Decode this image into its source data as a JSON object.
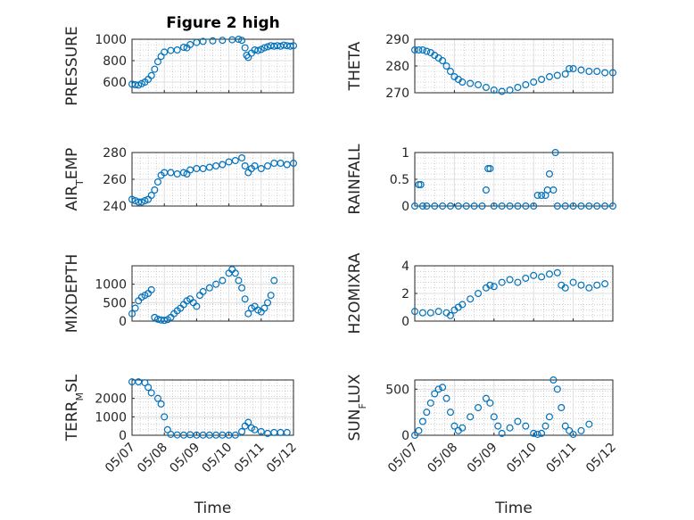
{
  "figure_title": "Figure 2 high",
  "colors": {
    "marker": "#0072BD",
    "axes": "#262626",
    "grid": "#DFDFDF",
    "minor_grid": "#B0B0B0"
  },
  "chart_data": [
    {
      "type": "scatter",
      "ylabel": "PRESSURE",
      "ylim": [
        500,
        1000
      ],
      "yticks": [
        600,
        800,
        1000
      ],
      "xlim": [
        0,
        5
      ],
      "xticks": [
        "05/07",
        "05/08",
        "05/09",
        "05/10",
        "05/11",
        "05/12"
      ],
      "xlabel": "",
      "grid": true,
      "points": [
        [
          0,
          580
        ],
        [
          0.1,
          575
        ],
        [
          0.2,
          572
        ],
        [
          0.3,
          585
        ],
        [
          0.4,
          600
        ],
        [
          0.5,
          625
        ],
        [
          0.6,
          660
        ],
        [
          0.7,
          720
        ],
        [
          0.8,
          790
        ],
        [
          0.9,
          840
        ],
        [
          1.0,
          880
        ],
        [
          1.2,
          895
        ],
        [
          1.4,
          900
        ],
        [
          1.6,
          925
        ],
        [
          1.7,
          920
        ],
        [
          1.8,
          950
        ],
        [
          2.0,
          970
        ],
        [
          2.2,
          980
        ],
        [
          2.5,
          985
        ],
        [
          2.8,
          990
        ],
        [
          3.1,
          995
        ],
        [
          3.3,
          1000
        ],
        [
          3.4,
          990
        ],
        [
          3.5,
          920
        ],
        [
          3.55,
          850
        ],
        [
          3.6,
          830
        ],
        [
          3.7,
          870
        ],
        [
          3.8,
          900
        ],
        [
          3.9,
          895
        ],
        [
          4.0,
          905
        ],
        [
          4.1,
          920
        ],
        [
          4.2,
          930
        ],
        [
          4.3,
          940
        ],
        [
          4.4,
          935
        ],
        [
          4.5,
          940
        ],
        [
          4.6,
          935
        ],
        [
          4.7,
          945
        ],
        [
          4.8,
          940
        ],
        [
          4.9,
          935
        ],
        [
          5.0,
          940
        ]
      ]
    },
    {
      "type": "scatter",
      "ylabel": "THETA",
      "ylim": [
        270,
        290
      ],
      "yticks": [
        270,
        280,
        290
      ],
      "xlim": [
        0,
        5
      ],
      "xticks": [
        "05/07",
        "05/08",
        "05/09",
        "05/10",
        "05/11",
        "05/12"
      ],
      "xlabel": "",
      "grid": true,
      "points": [
        [
          0,
          286
        ],
        [
          0.1,
          286
        ],
        [
          0.2,
          286
        ],
        [
          0.3,
          285.5
        ],
        [
          0.4,
          285
        ],
        [
          0.5,
          284
        ],
        [
          0.6,
          283
        ],
        [
          0.7,
          282
        ],
        [
          0.8,
          280
        ],
        [
          0.9,
          278
        ],
        [
          1.0,
          276
        ],
        [
          1.1,
          275
        ],
        [
          1.2,
          274
        ],
        [
          1.4,
          273.5
        ],
        [
          1.6,
          273
        ],
        [
          1.8,
          272
        ],
        [
          2.0,
          271
        ],
        [
          2.2,
          270.5
        ],
        [
          2.4,
          271
        ],
        [
          2.6,
          272
        ],
        [
          2.8,
          273
        ],
        [
          3.0,
          274
        ],
        [
          3.2,
          275
        ],
        [
          3.4,
          276
        ],
        [
          3.6,
          276.5
        ],
        [
          3.8,
          277
        ],
        [
          3.9,
          279
        ],
        [
          4.0,
          279
        ],
        [
          4.2,
          278.5
        ],
        [
          4.4,
          278
        ],
        [
          4.6,
          278
        ],
        [
          4.8,
          277.5
        ],
        [
          5.0,
          277.5
        ]
      ]
    },
    {
      "type": "scatter",
      "ylabel": "AIR_TEMP",
      "ylim": [
        240,
        280
      ],
      "yticks": [
        240,
        260,
        280
      ],
      "xlim": [
        0,
        5
      ],
      "xticks": [
        "05/07",
        "05/08",
        "05/09",
        "05/10",
        "05/11",
        "05/12"
      ],
      "xlabel": "",
      "grid": true,
      "points": [
        [
          0,
          245
        ],
        [
          0.1,
          244
        ],
        [
          0.2,
          243
        ],
        [
          0.3,
          243
        ],
        [
          0.4,
          244
        ],
        [
          0.5,
          245
        ],
        [
          0.6,
          248
        ],
        [
          0.7,
          252
        ],
        [
          0.8,
          258
        ],
        [
          0.9,
          263
        ],
        [
          1.0,
          265
        ],
        [
          1.2,
          265
        ],
        [
          1.4,
          264
        ],
        [
          1.6,
          265
        ],
        [
          1.7,
          264
        ],
        [
          1.8,
          267
        ],
        [
          2.0,
          268
        ],
        [
          2.2,
          268
        ],
        [
          2.4,
          269
        ],
        [
          2.6,
          270
        ],
        [
          2.8,
          271
        ],
        [
          3.0,
          273
        ],
        [
          3.2,
          274
        ],
        [
          3.4,
          276
        ],
        [
          3.5,
          270
        ],
        [
          3.6,
          265
        ],
        [
          3.7,
          268
        ],
        [
          3.8,
          270
        ],
        [
          4.0,
          268
        ],
        [
          4.2,
          270
        ],
        [
          4.4,
          272
        ],
        [
          4.6,
          272
        ],
        [
          4.8,
          271
        ],
        [
          5.0,
          272
        ]
      ]
    },
    {
      "type": "scatter",
      "ylabel": "RAINFALL",
      "ylim": [
        0,
        1
      ],
      "yticks": [
        0,
        0.5,
        1
      ],
      "xlim": [
        0,
        5
      ],
      "xticks": [
        "05/07",
        "05/08",
        "05/09",
        "05/10",
        "05/11",
        "05/12"
      ],
      "xlabel": "",
      "grid": true,
      "points": [
        [
          0,
          0
        ],
        [
          0.1,
          0.4
        ],
        [
          0.15,
          0.4
        ],
        [
          0.2,
          0
        ],
        [
          0.3,
          0
        ],
        [
          0.5,
          0
        ],
        [
          0.7,
          0
        ],
        [
          0.9,
          0
        ],
        [
          1.1,
          0
        ],
        [
          1.3,
          0
        ],
        [
          1.5,
          0
        ],
        [
          1.7,
          0
        ],
        [
          1.8,
          0.3
        ],
        [
          1.85,
          0.7
        ],
        [
          1.9,
          0.7
        ],
        [
          2.0,
          0
        ],
        [
          2.2,
          0
        ],
        [
          2.4,
          0
        ],
        [
          2.6,
          0
        ],
        [
          2.8,
          0
        ],
        [
          3.0,
          0
        ],
        [
          3.1,
          0.2
        ],
        [
          3.2,
          0.2
        ],
        [
          3.3,
          0.2
        ],
        [
          3.35,
          0.3
        ],
        [
          3.4,
          0.6
        ],
        [
          3.5,
          0.3
        ],
        [
          3.55,
          1.0
        ],
        [
          3.6,
          0
        ],
        [
          3.8,
          0
        ],
        [
          4.0,
          0
        ],
        [
          4.2,
          0
        ],
        [
          4.4,
          0
        ],
        [
          4.6,
          0
        ],
        [
          4.8,
          0
        ],
        [
          5.0,
          0
        ]
      ]
    },
    {
      "type": "scatter",
      "ylabel": "MIXDEPTH",
      "ylim": [
        0,
        1500
      ],
      "yticks": [
        0,
        500,
        1000
      ],
      "xlim": [
        0,
        5
      ],
      "xticks": [
        "05/07",
        "05/08",
        "05/09",
        "05/10",
        "05/11",
        "05/12"
      ],
      "xlabel": "",
      "grid": true,
      "points": [
        [
          0,
          200
        ],
        [
          0.1,
          350
        ],
        [
          0.2,
          550
        ],
        [
          0.3,
          650
        ],
        [
          0.4,
          700
        ],
        [
          0.5,
          750
        ],
        [
          0.6,
          850
        ],
        [
          0.7,
          100
        ],
        [
          0.8,
          50
        ],
        [
          0.9,
          30
        ],
        [
          1.0,
          20
        ],
        [
          1.1,
          40
        ],
        [
          1.2,
          100
        ],
        [
          1.3,
          200
        ],
        [
          1.4,
          280
        ],
        [
          1.5,
          350
        ],
        [
          1.6,
          450
        ],
        [
          1.7,
          550
        ],
        [
          1.8,
          600
        ],
        [
          1.9,
          500
        ],
        [
          2.0,
          400
        ],
        [
          2.1,
          700
        ],
        [
          2.2,
          800
        ],
        [
          2.4,
          900
        ],
        [
          2.6,
          1000
        ],
        [
          2.8,
          1100
        ],
        [
          3.0,
          1300
        ],
        [
          3.1,
          1400
        ],
        [
          3.2,
          1300
        ],
        [
          3.3,
          1100
        ],
        [
          3.4,
          900
        ],
        [
          3.5,
          600
        ],
        [
          3.6,
          200
        ],
        [
          3.7,
          350
        ],
        [
          3.8,
          400
        ],
        [
          3.9,
          300
        ],
        [
          4.0,
          250
        ],
        [
          4.1,
          350
        ],
        [
          4.2,
          500
        ],
        [
          4.3,
          700
        ],
        [
          4.4,
          1100
        ]
      ]
    },
    {
      "type": "scatter",
      "ylabel": "H2OMIXRA",
      "ylim": [
        0,
        4
      ],
      "yticks": [
        0,
        2,
        4
      ],
      "xlim": [
        0,
        5
      ],
      "xticks": [
        "05/07",
        "05/08",
        "05/09",
        "05/10",
        "05/11",
        "05/12"
      ],
      "xlabel": "",
      "grid": true,
      "points": [
        [
          0,
          0.7
        ],
        [
          0.2,
          0.6
        ],
        [
          0.4,
          0.6
        ],
        [
          0.6,
          0.7
        ],
        [
          0.8,
          0.6
        ],
        [
          0.9,
          0.4
        ],
        [
          1.0,
          0.8
        ],
        [
          1.1,
          1.0
        ],
        [
          1.2,
          1.2
        ],
        [
          1.4,
          1.6
        ],
        [
          1.6,
          2.0
        ],
        [
          1.8,
          2.4
        ],
        [
          1.9,
          2.6
        ],
        [
          2.0,
          2.5
        ],
        [
          2.2,
          2.8
        ],
        [
          2.4,
          3.0
        ],
        [
          2.6,
          2.8
        ],
        [
          2.8,
          3.1
        ],
        [
          3.0,
          3.3
        ],
        [
          3.2,
          3.2
        ],
        [
          3.4,
          3.4
        ],
        [
          3.6,
          3.5
        ],
        [
          3.7,
          2.6
        ],
        [
          3.8,
          2.4
        ],
        [
          4.0,
          2.8
        ],
        [
          4.2,
          2.6
        ],
        [
          4.4,
          2.4
        ],
        [
          4.6,
          2.6
        ],
        [
          4.8,
          2.7
        ]
      ]
    },
    {
      "type": "scatter",
      "ylabel": "TERR_MSL",
      "ylim": [
        0,
        3000
      ],
      "yticks": [
        0,
        1000,
        2000
      ],
      "xlim": [
        0,
        5
      ],
      "xticks": [
        "05/07",
        "05/08",
        "05/09",
        "05/10",
        "05/11",
        "05/12"
      ],
      "xlabel": "Time",
      "grid": true,
      "points": [
        [
          0,
          2900
        ],
        [
          0.2,
          2900
        ],
        [
          0.4,
          2850
        ],
        [
          0.5,
          2600
        ],
        [
          0.6,
          2300
        ],
        [
          0.8,
          2000
        ],
        [
          0.9,
          1700
        ],
        [
          1.0,
          1000
        ],
        [
          1.1,
          300
        ],
        [
          1.2,
          50
        ],
        [
          1.4,
          20
        ],
        [
          1.6,
          10
        ],
        [
          1.8,
          30
        ],
        [
          2.0,
          10
        ],
        [
          2.2,
          10
        ],
        [
          2.4,
          10
        ],
        [
          2.6,
          10
        ],
        [
          2.8,
          10
        ],
        [
          3.0,
          10
        ],
        [
          3.2,
          10
        ],
        [
          3.4,
          200
        ],
        [
          3.5,
          500
        ],
        [
          3.6,
          700
        ],
        [
          3.7,
          400
        ],
        [
          3.8,
          300
        ],
        [
          4.0,
          200
        ],
        [
          4.2,
          100
        ],
        [
          4.4,
          150
        ],
        [
          4.6,
          150
        ],
        [
          4.8,
          150
        ]
      ]
    },
    {
      "type": "scatter",
      "ylabel": "SUN_FLUX",
      "ylim": [
        0,
        600
      ],
      "yticks": [
        0,
        500
      ],
      "xlim": [
        0,
        5
      ],
      "xticks": [
        "05/07",
        "05/08",
        "05/09",
        "05/10",
        "05/11",
        "05/12"
      ],
      "xlabel": "Time",
      "grid": true,
      "points": [
        [
          0,
          0
        ],
        [
          0.1,
          50
        ],
        [
          0.2,
          150
        ],
        [
          0.3,
          250
        ],
        [
          0.4,
          350
        ],
        [
          0.5,
          450
        ],
        [
          0.6,
          500
        ],
        [
          0.7,
          520
        ],
        [
          0.8,
          400
        ],
        [
          0.9,
          250
        ],
        [
          1.0,
          100
        ],
        [
          1.1,
          50
        ],
        [
          1.2,
          80
        ],
        [
          1.4,
          200
        ],
        [
          1.6,
          300
        ],
        [
          1.8,
          400
        ],
        [
          1.9,
          350
        ],
        [
          2.0,
          200
        ],
        [
          2.1,
          100
        ],
        [
          2.2,
          20
        ],
        [
          2.4,
          80
        ],
        [
          2.6,
          150
        ],
        [
          2.8,
          100
        ],
        [
          3.0,
          20
        ],
        [
          3.1,
          10
        ],
        [
          3.2,
          20
        ],
        [
          3.3,
          100
        ],
        [
          3.4,
          200
        ],
        [
          3.5,
          600
        ],
        [
          3.6,
          500
        ],
        [
          3.7,
          300
        ],
        [
          3.8,
          100
        ],
        [
          3.9,
          50
        ],
        [
          4.0,
          10
        ],
        [
          4.2,
          50
        ],
        [
          4.4,
          120
        ]
      ]
    }
  ]
}
